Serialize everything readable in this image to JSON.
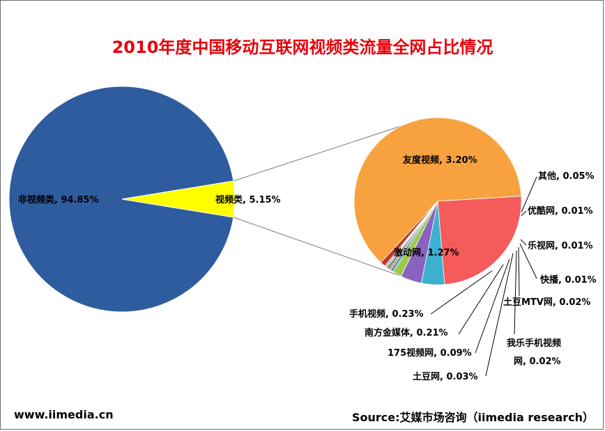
{
  "title": "2010年度中国移动互联网视频类流量全网占比情况",
  "footer": {
    "site": "www.iimedia.cn",
    "source": "Source:艾媒市场咨询（iimedia research）"
  },
  "colors": {
    "title": "#e8000b",
    "non_video": "#2e5c9e",
    "video": "#ffff00",
    "youdu": "#f7a23f",
    "jidong": "#f55b5b",
    "shouji": "#3eb0cf",
    "nanfang": "#8a63c1",
    "v175": "#9fc94d",
    "tudou": "#5b8dd6",
    "others": "#c0392b"
  },
  "chart_data": [
    {
      "type": "pie",
      "slices": [
        {
          "label": "非视频类, 94.85%",
          "name": "非视频类",
          "value": 94.85,
          "color": "#2e5c9e"
        },
        {
          "label": "视频类, 5.15%",
          "name": "视频类",
          "value": 5.15,
          "color": "#ffff00"
        }
      ]
    },
    {
      "type": "pie",
      "slices": [
        {
          "label": "友度视频, 3.20%",
          "name": "友度视频",
          "value": 3.2,
          "color": "#f7a23f"
        },
        {
          "label": "激动网, 1.27%",
          "name": "激动网",
          "value": 1.27,
          "color": "#f55b5b"
        },
        {
          "label": "手机视频, 0.23%",
          "name": "手机视频",
          "value": 0.23,
          "color": "#3eb0cf"
        },
        {
          "label": "南方金媒体, 0.21%",
          "name": "南方金媒体",
          "value": 0.21,
          "color": "#8a63c1"
        },
        {
          "label": "175视频网, 0.09%",
          "name": "175视频网",
          "value": 0.09,
          "color": "#9fc94d"
        },
        {
          "label": "土豆网, 0.03%",
          "name": "土豆网",
          "value": 0.03,
          "color": "#5b8dd6"
        },
        {
          "label": "我乐手机视频网, 0.02%",
          "name": "我乐手机视频网",
          "value": 0.02,
          "color": "#e07b39"
        },
        {
          "label": "土豆MTV网, 0.02%",
          "name": "土豆MTV网",
          "value": 0.02,
          "color": "#2a7f62"
        },
        {
          "label": "快播, 0.01%",
          "name": "快播",
          "value": 0.01,
          "color": "#7d3c98"
        },
        {
          "label": "乐视网, 0.01%",
          "name": "乐视网",
          "value": 0.01,
          "color": "#b8860b"
        },
        {
          "label": "优酷网, 0.01%",
          "name": "优酷网",
          "value": 0.01,
          "color": "#1f4e79"
        },
        {
          "label": "其他, 0.05%",
          "name": "其他",
          "value": 0.05,
          "color": "#c0392b"
        }
      ]
    }
  ]
}
